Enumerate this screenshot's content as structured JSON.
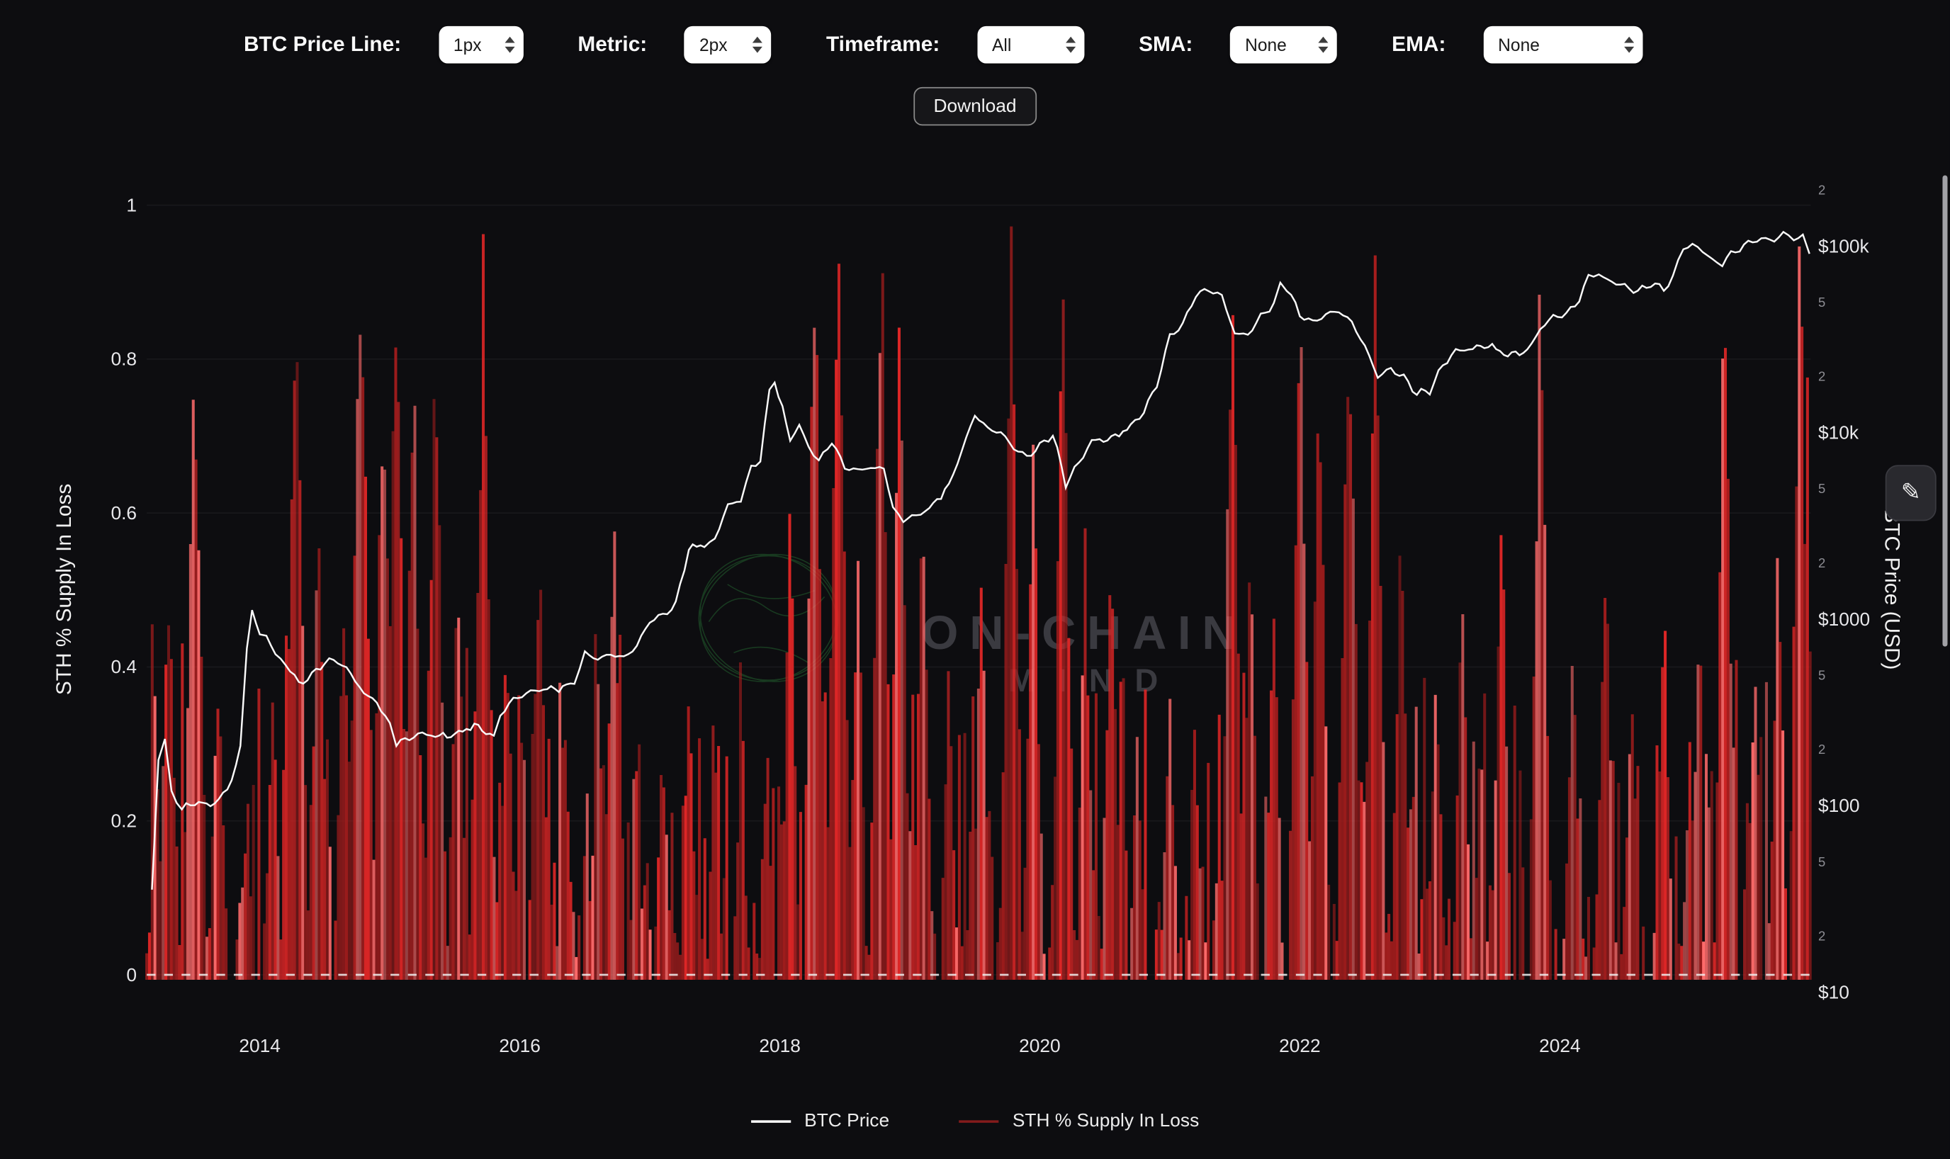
{
  "toolbar": {
    "controls": [
      {
        "label": "BTC Price Line:",
        "value": "1px"
      },
      {
        "label": "Metric:",
        "value": "2px"
      },
      {
        "label": "Timeframe:",
        "value": "All"
      },
      {
        "label": "SMA:",
        "value": "None"
      },
      {
        "label": "EMA:",
        "value": "None"
      }
    ],
    "download_label": "Download"
  },
  "watermark": {
    "line1": "ON-CHAIN",
    "line2": "MIND"
  },
  "icons": {
    "edit": "✎"
  },
  "colors": {
    "background": "#0d0d10",
    "price_line": "#ffffff",
    "bar_red": "#d92525"
  },
  "chart_data": {
    "type": "mixed",
    "x_axis": {
      "range": [
        2013.13,
        2025.93
      ],
      "ticks": [
        2014,
        2016,
        2018,
        2020,
        2022,
        2024
      ]
    },
    "left_axis": {
      "title": "STH % Supply In Loss",
      "range": [
        0,
        1
      ],
      "ticks": [
        0,
        0.2,
        0.4,
        0.6,
        0.8,
        1
      ]
    },
    "right_axis": {
      "title": "BTC Price (USD)",
      "scale": "log10",
      "major_ticks": [
        [
          10,
          "$10"
        ],
        [
          100,
          "$100"
        ],
        [
          1000,
          "$1000"
        ],
        [
          10000,
          "$10k"
        ],
        [
          100000,
          "$100k"
        ]
      ],
      "minor_tick_multipliers": [
        2,
        5
      ]
    },
    "zero_line": "dashed",
    "series": [
      {
        "name": "BTC Price",
        "type": "line",
        "axis": "right",
        "color": "#ffffff",
        "points": [
          [
            2013.12,
            14
          ],
          [
            2013.17,
            35
          ],
          [
            2013.22,
            180
          ],
          [
            2013.27,
            230
          ],
          [
            2013.32,
            120
          ],
          [
            2013.4,
            95
          ],
          [
            2013.5,
            105
          ],
          [
            2013.62,
            100
          ],
          [
            2013.75,
            120
          ],
          [
            2013.85,
            200
          ],
          [
            2013.9,
            700
          ],
          [
            2013.94,
            1120
          ],
          [
            2014.0,
            810
          ],
          [
            2014.05,
            850
          ],
          [
            2014.12,
            620
          ],
          [
            2014.2,
            580
          ],
          [
            2014.3,
            450
          ],
          [
            2014.4,
            500
          ],
          [
            2014.5,
            590
          ],
          [
            2014.6,
            600
          ],
          [
            2014.7,
            510
          ],
          [
            2014.8,
            400
          ],
          [
            2014.9,
            360
          ],
          [
            2015.0,
            270
          ],
          [
            2015.05,
            215
          ],
          [
            2015.15,
            230
          ],
          [
            2015.25,
            245
          ],
          [
            2015.35,
            235
          ],
          [
            2015.5,
            240
          ],
          [
            2015.65,
            270
          ],
          [
            2015.8,
            235
          ],
          [
            2015.85,
            310
          ],
          [
            2015.95,
            370
          ],
          [
            2016.05,
            400
          ],
          [
            2016.15,
            420
          ],
          [
            2016.3,
            425
          ],
          [
            2016.42,
            455
          ],
          [
            2016.5,
            660
          ],
          [
            2016.6,
            610
          ],
          [
            2016.7,
            650
          ],
          [
            2016.8,
            620
          ],
          [
            2016.9,
            720
          ],
          [
            2017.0,
            980
          ],
          [
            2017.1,
            1050
          ],
          [
            2017.2,
            1200
          ],
          [
            2017.3,
            2400
          ],
          [
            2017.42,
            2500
          ],
          [
            2017.5,
            2700
          ],
          [
            2017.6,
            4100
          ],
          [
            2017.7,
            4300
          ],
          [
            2017.78,
            6500
          ],
          [
            2017.85,
            7200
          ],
          [
            2017.92,
            16500
          ],
          [
            2017.96,
            19000
          ],
          [
            2018.02,
            13500
          ],
          [
            2018.08,
            9000
          ],
          [
            2018.15,
            11000
          ],
          [
            2018.22,
            8500
          ],
          [
            2018.3,
            7000
          ],
          [
            2018.4,
            9000
          ],
          [
            2018.5,
            6500
          ],
          [
            2018.6,
            6300
          ],
          [
            2018.7,
            6500
          ],
          [
            2018.8,
            6400
          ],
          [
            2018.87,
            4000
          ],
          [
            2018.95,
            3400
          ],
          [
            2019.05,
            3600
          ],
          [
            2019.15,
            3900
          ],
          [
            2019.3,
            5200
          ],
          [
            2019.4,
            8000
          ],
          [
            2019.5,
            12500
          ],
          [
            2019.6,
            10500
          ],
          [
            2019.7,
            10000
          ],
          [
            2019.8,
            8300
          ],
          [
            2019.9,
            7400
          ],
          [
            2020.0,
            8500
          ],
          [
            2020.1,
            9800
          ],
          [
            2020.2,
            5300
          ],
          [
            2020.3,
            6900
          ],
          [
            2020.4,
            9000
          ],
          [
            2020.55,
            9300
          ],
          [
            2020.7,
            10800
          ],
          [
            2020.8,
            13000
          ],
          [
            2020.9,
            18000
          ],
          [
            2021.0,
            33000
          ],
          [
            2021.1,
            38000
          ],
          [
            2021.2,
            55000
          ],
          [
            2021.3,
            58500
          ],
          [
            2021.4,
            54000
          ],
          [
            2021.5,
            34000
          ],
          [
            2021.6,
            33500
          ],
          [
            2021.7,
            42000
          ],
          [
            2021.8,
            49000
          ],
          [
            2021.85,
            64000
          ],
          [
            2021.9,
            60000
          ],
          [
            2022.0,
            43000
          ],
          [
            2022.1,
            39000
          ],
          [
            2022.2,
            43000
          ],
          [
            2022.3,
            45000
          ],
          [
            2022.4,
            39000
          ],
          [
            2022.5,
            29000
          ],
          [
            2022.6,
            20000
          ],
          [
            2022.7,
            22000
          ],
          [
            2022.8,
            19800
          ],
          [
            2022.9,
            16200
          ],
          [
            2023.0,
            16800
          ],
          [
            2023.1,
            23000
          ],
          [
            2023.2,
            27500
          ],
          [
            2023.3,
            28000
          ],
          [
            2023.45,
            29500
          ],
          [
            2023.6,
            26000
          ],
          [
            2023.75,
            27500
          ],
          [
            2023.85,
            36000
          ],
          [
            2023.95,
            42000
          ],
          [
            2024.05,
            43000
          ],
          [
            2024.15,
            52000
          ],
          [
            2024.22,
            68000
          ],
          [
            2024.3,
            70000
          ],
          [
            2024.4,
            64500
          ],
          [
            2024.5,
            61000
          ],
          [
            2024.6,
            57000
          ],
          [
            2024.7,
            63000
          ],
          [
            2024.8,
            59000
          ],
          [
            2024.87,
            68000
          ],
          [
            2024.95,
            96000
          ],
          [
            2025.02,
            103000
          ],
          [
            2025.1,
            95000
          ],
          [
            2025.17,
            84000
          ],
          [
            2025.25,
            82000
          ],
          [
            2025.35,
            94000
          ],
          [
            2025.45,
            104000
          ],
          [
            2025.55,
            110000
          ],
          [
            2025.65,
            107000
          ],
          [
            2025.72,
            118000
          ],
          [
            2025.8,
            113000
          ],
          [
            2025.87,
            110000
          ],
          [
            2025.92,
            91000
          ]
        ]
      },
      {
        "name": "STH % Supply In Loss",
        "type": "bars",
        "axis": "left",
        "color": "#d92525",
        "palette": [
          "#a51d1d",
          "#dc2626",
          "#ff6b6b"
        ],
        "baseline_noise_max": 0.5,
        "spikes": [
          [
            2013.2,
            0.32,
            0.06
          ],
          [
            2013.3,
            0.5,
            0.09
          ],
          [
            2013.5,
            0.78,
            0.1
          ],
          [
            2013.68,
            0.38,
            0.08
          ],
          [
            2013.9,
            0.22,
            0.06
          ],
          [
            2014.1,
            0.35,
            0.07
          ],
          [
            2014.28,
            0.93,
            0.1
          ],
          [
            2014.45,
            0.6,
            0.08
          ],
          [
            2014.65,
            0.5,
            0.08
          ],
          [
            2014.78,
            0.96,
            0.11
          ],
          [
            2014.95,
            0.8,
            0.09
          ],
          [
            2015.05,
            0.95,
            0.09
          ],
          [
            2015.18,
            0.82,
            0.08
          ],
          [
            2015.35,
            0.86,
            0.09
          ],
          [
            2015.52,
            0.55,
            0.08
          ],
          [
            2015.72,
            0.9,
            0.1
          ],
          [
            2015.9,
            0.45,
            0.07
          ],
          [
            2016.15,
            0.55,
            0.08
          ],
          [
            2016.35,
            0.32,
            0.07
          ],
          [
            2016.6,
            0.38,
            0.07
          ],
          [
            2016.72,
            0.6,
            0.08
          ],
          [
            2016.9,
            0.26,
            0.06
          ],
          [
            2017.1,
            0.3,
            0.07
          ],
          [
            2017.3,
            0.36,
            0.07
          ],
          [
            2017.5,
            0.3,
            0.06
          ],
          [
            2017.7,
            0.28,
            0.06
          ],
          [
            2017.9,
            0.3,
            0.06
          ],
          [
            2018.08,
            0.6,
            0.07
          ],
          [
            2018.27,
            0.95,
            0.09
          ],
          [
            2018.45,
            0.96,
            0.1
          ],
          [
            2018.6,
            0.55,
            0.07
          ],
          [
            2018.78,
            0.95,
            0.09
          ],
          [
            2018.92,
            0.93,
            0.08
          ],
          [
            2019.1,
            0.62,
            0.08
          ],
          [
            2019.3,
            0.4,
            0.07
          ],
          [
            2019.55,
            0.5,
            0.07
          ],
          [
            2019.78,
            0.93,
            0.09
          ],
          [
            2019.95,
            0.68,
            0.08
          ],
          [
            2020.18,
            0.92,
            0.09
          ],
          [
            2020.35,
            0.55,
            0.07
          ],
          [
            2020.55,
            0.58,
            0.08
          ],
          [
            2020.75,
            0.32,
            0.06
          ],
          [
            2021.0,
            0.36,
            0.07
          ],
          [
            2021.2,
            0.3,
            0.06
          ],
          [
            2021.48,
            0.93,
            0.09
          ],
          [
            2021.62,
            0.58,
            0.07
          ],
          [
            2021.8,
            0.48,
            0.07
          ],
          [
            2022.0,
            0.93,
            0.09
          ],
          [
            2022.15,
            0.82,
            0.08
          ],
          [
            2022.38,
            0.9,
            0.1
          ],
          [
            2022.58,
            0.86,
            0.09
          ],
          [
            2022.78,
            0.58,
            0.08
          ],
          [
            2023.05,
            0.38,
            0.07
          ],
          [
            2023.25,
            0.52,
            0.07
          ],
          [
            2023.55,
            0.62,
            0.08
          ],
          [
            2023.85,
            0.9,
            0.09
          ],
          [
            2024.1,
            0.42,
            0.07
          ],
          [
            2024.35,
            0.56,
            0.08
          ],
          [
            2024.55,
            0.38,
            0.07
          ],
          [
            2024.8,
            0.48,
            0.07
          ],
          [
            2025.0,
            0.32,
            0.06
          ],
          [
            2025.27,
            0.93,
            0.08
          ],
          [
            2025.5,
            0.42,
            0.07
          ],
          [
            2025.68,
            0.6,
            0.07
          ],
          [
            2025.85,
            0.96,
            0.09
          ],
          [
            2025.9,
            0.88,
            0.05
          ]
        ]
      }
    ]
  }
}
